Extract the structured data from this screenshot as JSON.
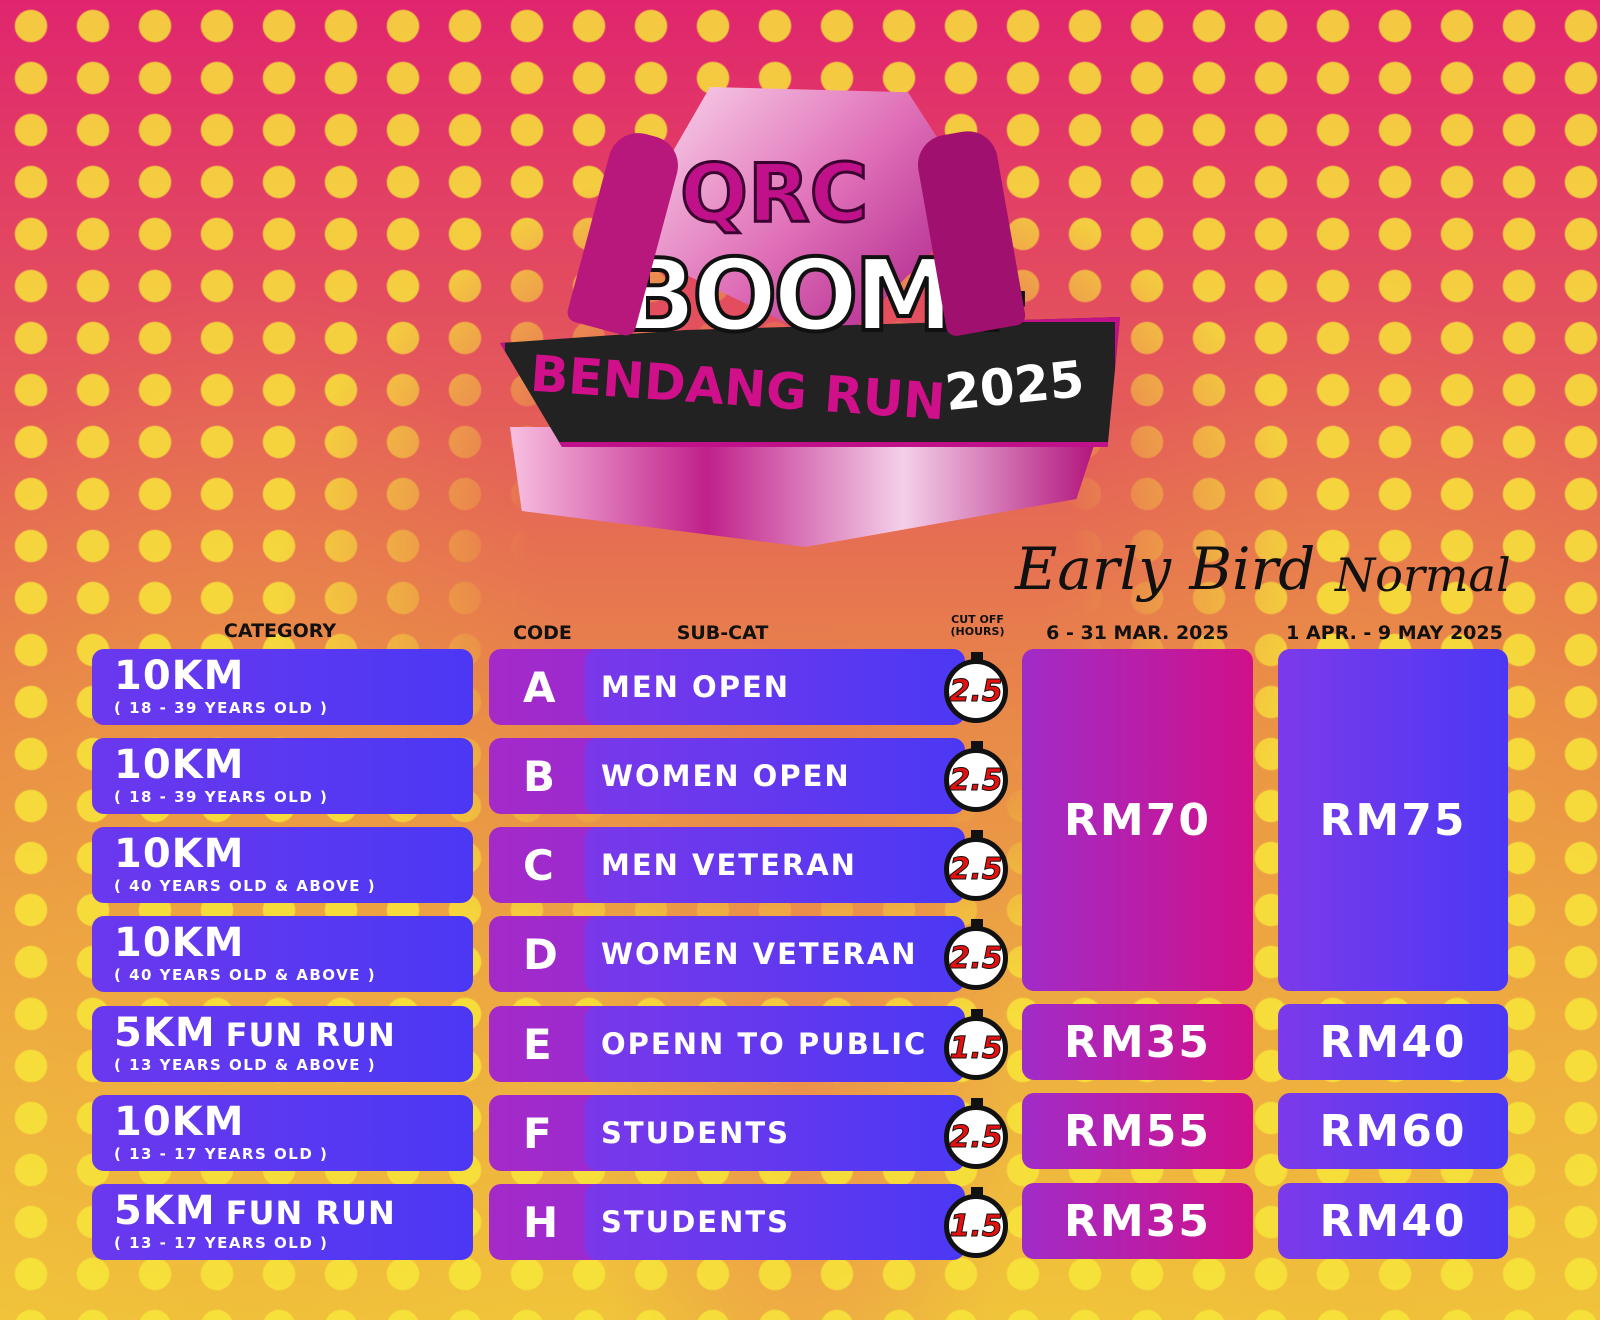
{
  "logo": {
    "line1": "QRC",
    "line2": "BOOM+",
    "line3": "BENDANG RUN",
    "year": "2025"
  },
  "headers": {
    "category": "CATEGORY",
    "code": "CODE",
    "subcat": "SUB-CAT",
    "cutoff": "CUT OFF",
    "cutoff_unit": "(HOURS)",
    "early_bird": "Early Bird",
    "early_bird_dates": "6 - 31 MAR. 2025",
    "normal": "Normal",
    "normal_dates": "1 APR. - 9 MAY 2025"
  },
  "rows": [
    {
      "distance": "10KM",
      "extra": "",
      "age": "( 18 - 39 YEARS OLD )",
      "code": "A",
      "subcat": "MEN OPEN",
      "cutoff": "2.5"
    },
    {
      "distance": "10KM",
      "extra": "",
      "age": "( 18 - 39 YEARS OLD )",
      "code": "B",
      "subcat": "WOMEN OPEN",
      "cutoff": "2.5"
    },
    {
      "distance": "10KM",
      "extra": "",
      "age": "( 40 YEARS OLD & ABOVE )",
      "code": "C",
      "subcat": "MEN VETERAN",
      "cutoff": "2.5"
    },
    {
      "distance": "10KM",
      "extra": "",
      "age": "( 40 YEARS OLD & ABOVE )",
      "code": "D",
      "subcat": "WOMEN VETERAN",
      "cutoff": "2.5"
    },
    {
      "distance": "5KM",
      "extra": "FUN RUN",
      "age": "( 13 YEARS OLD & ABOVE )",
      "code": "E",
      "subcat": "OPENN TO PUBLIC",
      "cutoff": "1.5"
    },
    {
      "distance": "10KM",
      "extra": "",
      "age": "( 13 - 17 YEARS OLD )",
      "code": "F",
      "subcat": "STUDENTS",
      "cutoff": "2.5"
    },
    {
      "distance": "5KM",
      "extra": "FUN RUN",
      "age": "( 13 - 17 YEARS OLD )",
      "code": "H",
      "subcat": "STUDENTS",
      "cutoff": "1.5"
    }
  ],
  "prices": {
    "early_bird": {
      "abcd": "RM70",
      "e": "RM35",
      "f": "RM55",
      "h": "RM35"
    },
    "normal": {
      "abcd": "RM75",
      "e": "RM40",
      "f": "RM60",
      "h": "RM40"
    }
  },
  "colors": {
    "purple": "#4b38f4",
    "magenta": "#d0108a",
    "yellow_dots": "#f8e63a",
    "timer_red": "#e31010"
  }
}
